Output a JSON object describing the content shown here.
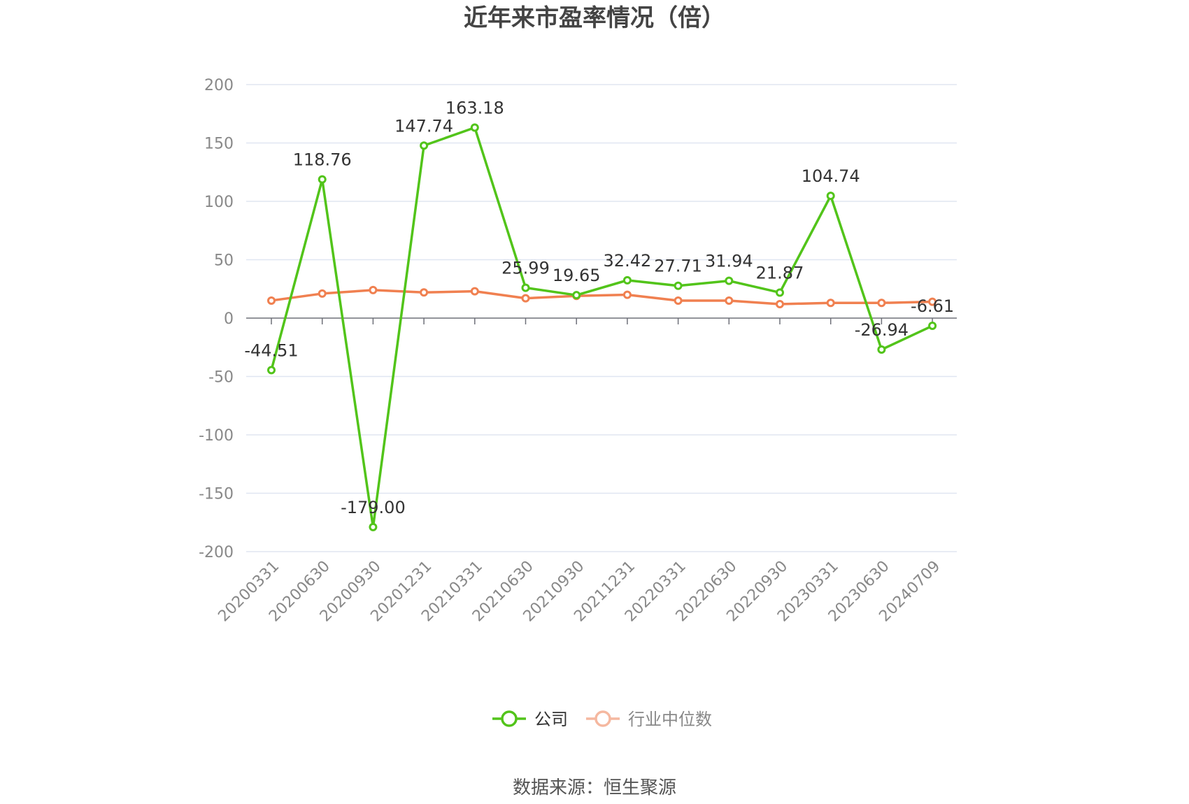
{
  "chart_data": {
    "type": "line",
    "title": "近年来市盈率情况（倍）",
    "source": "数据来源：恒生聚源",
    "categories": [
      "20200331",
      "20200630",
      "20200930",
      "20201231",
      "20210331",
      "20210630",
      "20210930",
      "20211231",
      "20220331",
      "20220630",
      "20220930",
      "20230331",
      "20230630",
      "20240709"
    ],
    "ylim": [
      -200,
      200
    ],
    "yticks": [
      200,
      150,
      100,
      50,
      0,
      -50,
      -100,
      -150,
      -200
    ],
    "grid": true,
    "legend_position": "bottom",
    "series": [
      {
        "name": "公司",
        "color": "#52c41a",
        "values": [
          -44.51,
          118.76,
          -179.0,
          147.74,
          163.18,
          25.99,
          19.65,
          32.42,
          27.71,
          31.94,
          21.87,
          104.74,
          -26.94,
          -6.61
        ],
        "labels": [
          "-44.51",
          "118.76",
          "-179.00",
          "147.74",
          "163.18",
          "25.99",
          "19.65",
          "32.42",
          "27.71",
          "31.94",
          "21.87",
          "104.74",
          "-26.94",
          "-6.61"
        ]
      },
      {
        "name": "行业中位数",
        "color": "#f08050",
        "values": [
          15.0,
          21.0,
          24.0,
          22.0,
          23.0,
          17.0,
          19.0,
          20.0,
          15.0,
          15.0,
          12.0,
          13.0,
          13.0,
          14.0
        ]
      }
    ]
  }
}
